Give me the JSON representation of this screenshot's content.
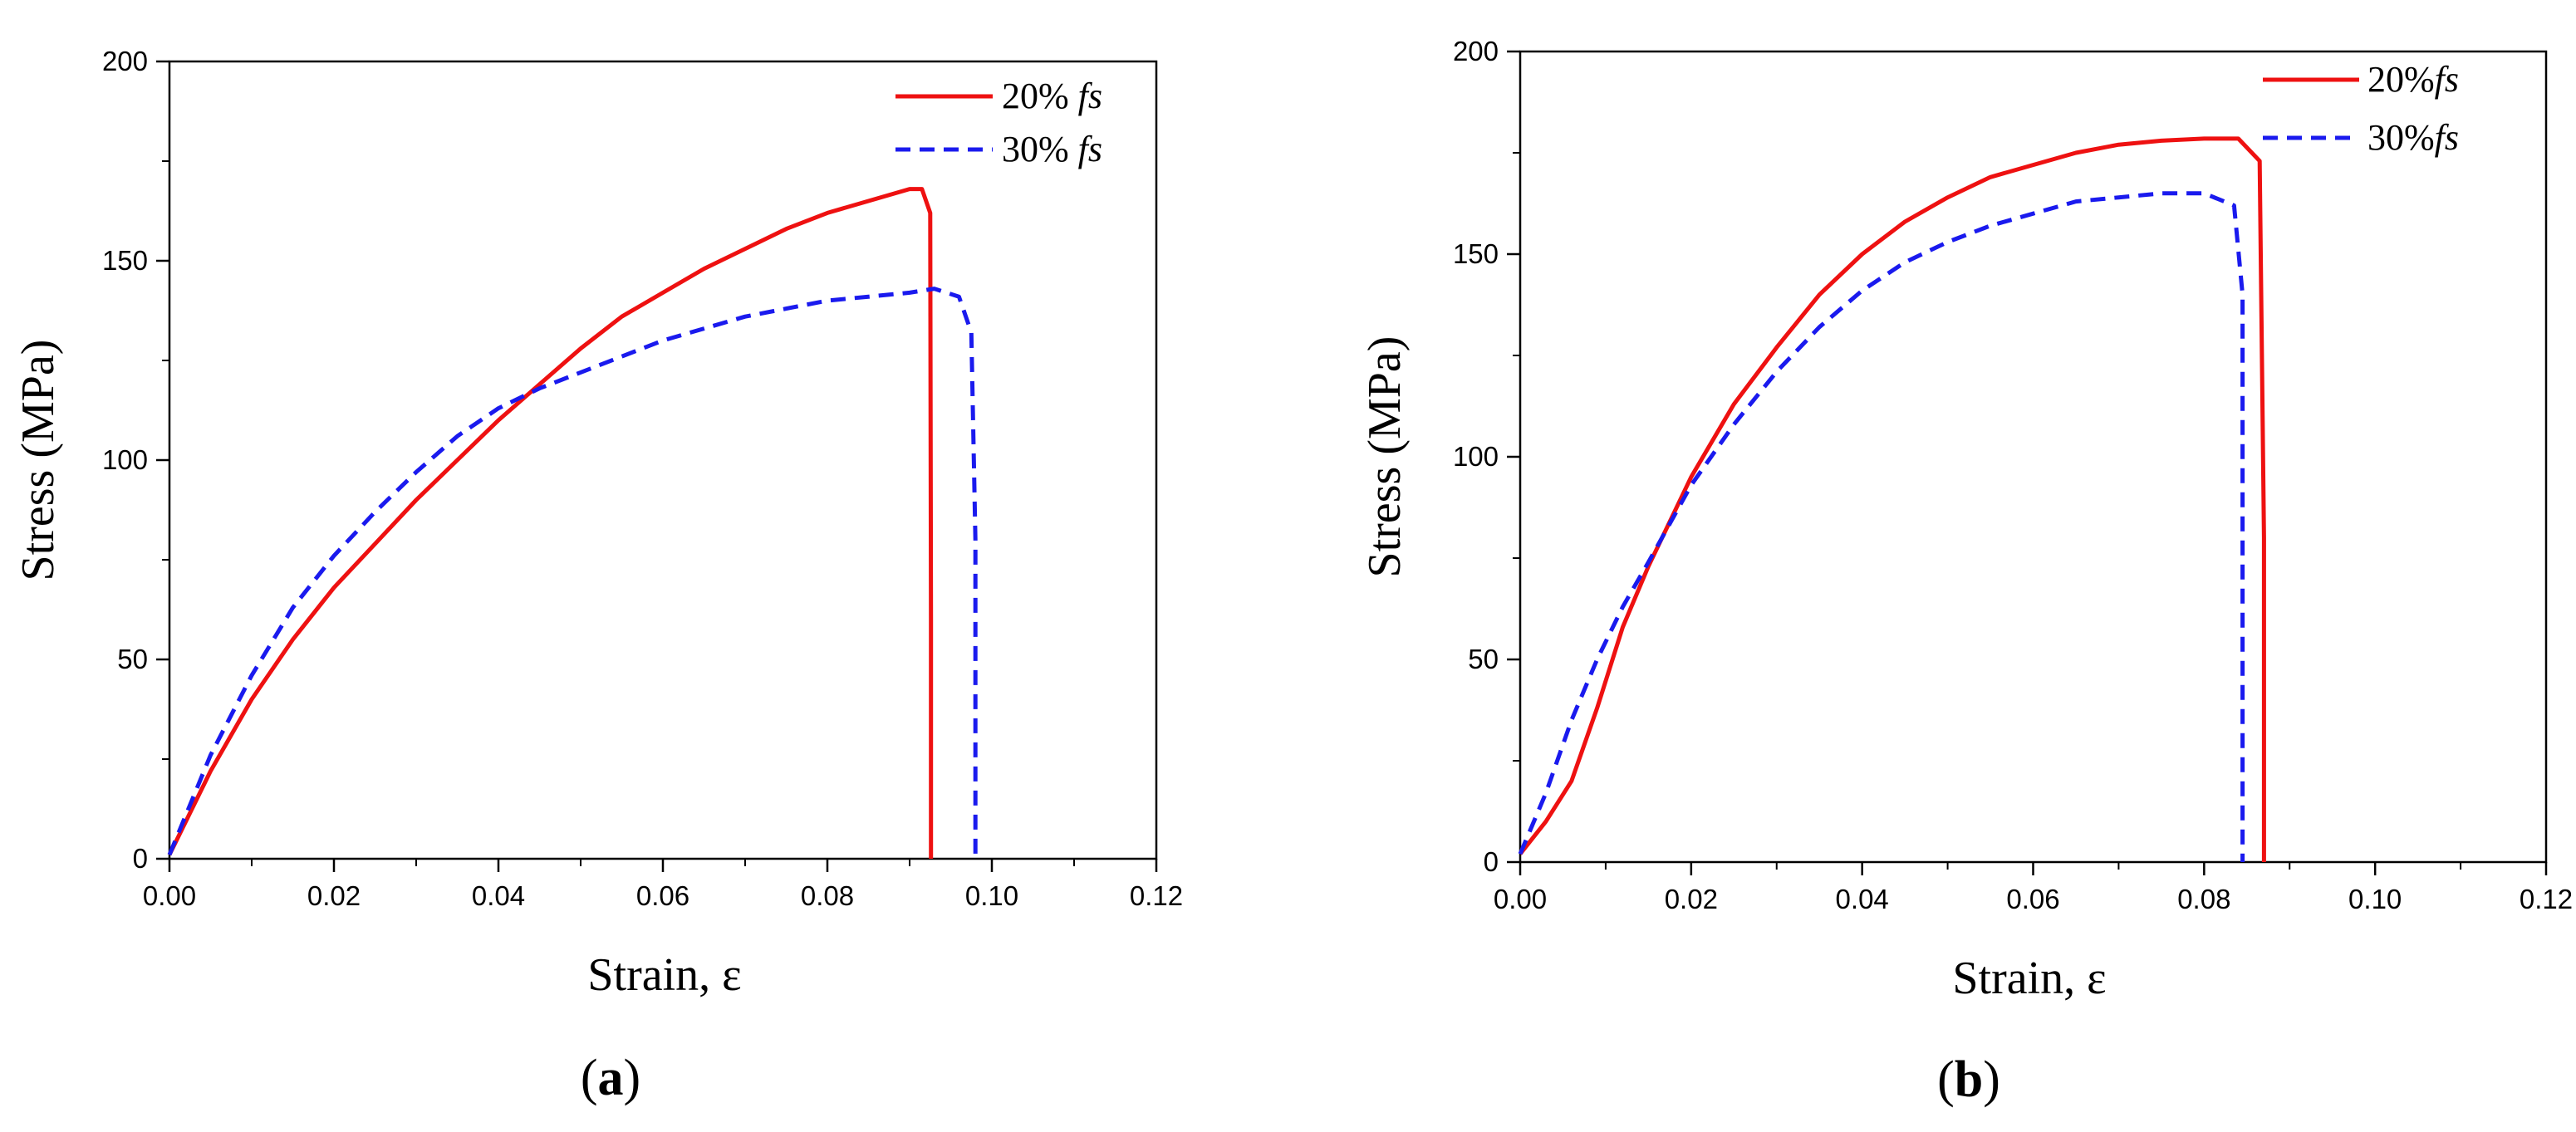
{
  "chart_data": [
    {
      "type": "line",
      "panel_label": {
        "open": "(",
        "letter": "a",
        "close": ")"
      },
      "xlabel": "Strain, ε",
      "ylabel": "Stress (MPa)",
      "xlim": [
        0,
        0.12
      ],
      "ylim": [
        0,
        200
      ],
      "xticks": [
        "0.00",
        "0.02",
        "0.04",
        "0.06",
        "0.08",
        "0.10",
        "0.12"
      ],
      "yticks": [
        "0",
        "50",
        "100",
        "150",
        "200"
      ],
      "legend_position": "top-right",
      "series": [
        {
          "name": "20% fs",
          "legend": {
            "prefix": "20% ",
            "italic": "fs"
          },
          "color": "#ee1111",
          "dashed": false,
          "x": [
            0,
            0.005,
            0.01,
            0.015,
            0.02,
            0.025,
            0.03,
            0.035,
            0.04,
            0.045,
            0.05,
            0.055,
            0.06,
            0.065,
            0.07,
            0.075,
            0.08,
            0.085,
            0.09,
            0.0915,
            0.0925,
            0.0926,
            0.0926
          ],
          "y": [
            1,
            22,
            40,
            55,
            68,
            79,
            90,
            100,
            110,
            119,
            128,
            136,
            142,
            148,
            153,
            158,
            162,
            165,
            168,
            168,
            162,
            60,
            0
          ]
        },
        {
          "name": "30% fs",
          "legend": {
            "prefix": "30% ",
            "italic": "fs"
          },
          "color": "#1a1aee",
          "dashed": true,
          "x": [
            0,
            0.005,
            0.01,
            0.015,
            0.02,
            0.025,
            0.03,
            0.035,
            0.04,
            0.045,
            0.05,
            0.055,
            0.06,
            0.065,
            0.07,
            0.075,
            0.08,
            0.085,
            0.09,
            0.093,
            0.096,
            0.0975,
            0.098,
            0.098
          ],
          "y": [
            1,
            26,
            46,
            63,
            76,
            87,
            97,
            106,
            113,
            118,
            122,
            126,
            130,
            133,
            136,
            138,
            140,
            141,
            142,
            143,
            141,
            132,
            80,
            0
          ]
        }
      ]
    },
    {
      "type": "line",
      "panel_label": {
        "open": "(",
        "letter": "b",
        "close": ")"
      },
      "xlabel": "Strain, ε",
      "ylabel": "Stress (MPa)",
      "xlim": [
        0,
        0.12
      ],
      "ylim": [
        0,
        200
      ],
      "xticks": [
        "0.00",
        "0.02",
        "0.04",
        "0.06",
        "0.08",
        "0.10",
        "0.12"
      ],
      "yticks": [
        "0",
        "50",
        "100",
        "150",
        "200"
      ],
      "legend_position": "top-right",
      "series": [
        {
          "name": "20% fs",
          "legend": {
            "prefix": "20%",
            "italic": "fs"
          },
          "color": "#ee1111",
          "dashed": false,
          "x": [
            0,
            0.003,
            0.006,
            0.009,
            0.012,
            0.015,
            0.02,
            0.025,
            0.03,
            0.035,
            0.04,
            0.045,
            0.05,
            0.055,
            0.06,
            0.065,
            0.07,
            0.075,
            0.08,
            0.084,
            0.0865,
            0.087,
            0.087
          ],
          "y": [
            2,
            10,
            20,
            38,
            58,
            73,
            95,
            113,
            127,
            140,
            150,
            158,
            164,
            169,
            172,
            175,
            177,
            178,
            178.5,
            178.5,
            173,
            80,
            0
          ]
        },
        {
          "name": "30% fs",
          "legend": {
            "prefix": "30%",
            "italic": "fs"
          },
          "color": "#1a1aee",
          "dashed": true,
          "x": [
            0,
            0.003,
            0.006,
            0.009,
            0.012,
            0.015,
            0.02,
            0.025,
            0.03,
            0.035,
            0.04,
            0.045,
            0.05,
            0.055,
            0.06,
            0.065,
            0.07,
            0.075,
            0.08,
            0.0835,
            0.0845,
            0.0845
          ],
          "y": [
            2,
            17,
            35,
            50,
            63,
            74,
            93,
            108,
            121,
            132,
            141,
            148,
            153,
            157,
            160,
            163,
            164,
            165,
            165,
            162,
            140,
            0
          ]
        }
      ]
    }
  ]
}
